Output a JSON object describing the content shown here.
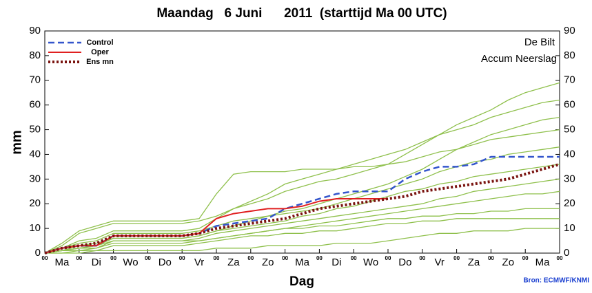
{
  "chart_data": {
    "type": "line",
    "title": "Maandag   6 Juni      2011  (starttijd Ma 00 UTC)",
    "annotations": [
      "De Bilt",
      "Accum Neerslag"
    ],
    "ylabel": "mm",
    "xlabel": "Dag",
    "source": "Bron: ECMWF/KNMI",
    "categories": [
      "Ma",
      "Di",
      "Wo",
      "Do",
      "Vr",
      "Za",
      "Zo",
      "Ma",
      "Di",
      "Wo",
      "Do",
      "Vr",
      "Za",
      "Zo",
      "Ma"
    ],
    "x": [
      0,
      0.5,
      1,
      1.5,
      2,
      2.5,
      3,
      3.5,
      4,
      4.5,
      5,
      5.5,
      6,
      6.5,
      7,
      7.5,
      8,
      8.5,
      9,
      9.5,
      10,
      10.5,
      11,
      11.5,
      12,
      12.5,
      13,
      13.5,
      14,
      14.5,
      15
    ],
    "xlim": [
      0,
      15
    ],
    "xticks": [
      {
        "value": 0,
        "label": "00"
      },
      {
        "value": 1,
        "label": "00"
      },
      {
        "value": 2,
        "label": "00"
      },
      {
        "value": 3,
        "label": "00"
      },
      {
        "value": 4,
        "label": "00"
      },
      {
        "value": 5,
        "label": "00"
      },
      {
        "value": 6,
        "label": "00"
      },
      {
        "value": 7,
        "label": "00"
      },
      {
        "value": 8,
        "label": "00"
      },
      {
        "value": 9,
        "label": "00"
      },
      {
        "value": 10,
        "label": "00"
      },
      {
        "value": 11,
        "label": "00"
      },
      {
        "value": 12,
        "label": "00"
      },
      {
        "value": 13,
        "label": "00"
      },
      {
        "value": 14,
        "label": "00"
      },
      {
        "value": 15,
        "label": "00"
      }
    ],
    "ylim": [
      0,
      90
    ],
    "yticks": [
      0,
      10,
      20,
      30,
      40,
      50,
      60,
      70,
      80,
      90
    ],
    "y2lim": [
      0,
      90
    ],
    "y2ticks": [
      0,
      10,
      20,
      30,
      40,
      50,
      60,
      70,
      80,
      90
    ],
    "legend": "top-left",
    "series": [
      {
        "color": "#8fc04c",
        "style": "solid",
        "values": [
          0,
          3,
          8,
          10,
          12,
          12,
          12,
          12,
          12,
          13,
          15,
          18,
          20,
          22,
          25,
          27,
          29,
          30,
          32,
          34,
          36,
          40,
          44,
          48,
          52,
          55,
          58,
          62,
          65,
          67,
          69
        ]
      },
      {
        "color": "#8fc04c",
        "style": "solid",
        "values": [
          0,
          2,
          5,
          6,
          9,
          9,
          9,
          9,
          9,
          10,
          14,
          18,
          21,
          24,
          28,
          30,
          32,
          34,
          36,
          38,
          40,
          42,
          45,
          48,
          50,
          52,
          55,
          57,
          59,
          61,
          62
        ]
      },
      {
        "color": "#8fc04c",
        "style": "solid",
        "values": [
          0,
          1,
          2,
          3,
          6,
          6,
          6,
          6,
          6,
          7,
          9,
          11,
          13,
          15,
          17,
          18,
          20,
          22,
          24,
          26,
          28,
          31,
          34,
          38,
          42,
          45,
          48,
          50,
          52,
          54,
          55
        ]
      },
      {
        "color": "#8fc04c",
        "style": "solid",
        "values": [
          0,
          4,
          9,
          11,
          13,
          13,
          13,
          13,
          13,
          14,
          24,
          32,
          33,
          33,
          33,
          34,
          34,
          34,
          35,
          35,
          36,
          37,
          39,
          41,
          42,
          44,
          46,
          47,
          48,
          49,
          50
        ]
      },
      {
        "color": "#8fc04c",
        "style": "solid",
        "values": [
          0,
          2,
          4,
          5,
          8,
          8,
          8,
          8,
          8,
          9,
          11,
          13,
          14,
          15,
          16,
          17,
          18,
          20,
          22,
          24,
          26,
          28,
          30,
          33,
          35,
          37,
          38,
          40,
          41,
          42,
          43
        ]
      },
      {
        "color": "#8fc04c",
        "style": "solid",
        "values": [
          0,
          1,
          3,
          4,
          6,
          6,
          6,
          6,
          6,
          7,
          9,
          10,
          11,
          12,
          13,
          15,
          16,
          18,
          19,
          21,
          23,
          25,
          26,
          28,
          29,
          31,
          32,
          33,
          34,
          35,
          36
        ]
      },
      {
        "color": "#8fc04c",
        "style": "solid",
        "values": [
          0,
          1,
          2,
          3,
          5,
          5,
          5,
          5,
          5,
          6,
          8,
          9,
          10,
          11,
          12,
          13,
          14,
          15,
          16,
          17,
          18,
          19,
          20,
          22,
          23,
          25,
          26,
          27,
          28,
          29,
          30
        ]
      },
      {
        "color": "#8fc04c",
        "style": "solid",
        "values": [
          0,
          1,
          2,
          2,
          5,
          5,
          5,
          5,
          5,
          5,
          6,
          7,
          8,
          9,
          10,
          11,
          12,
          13,
          14,
          15,
          16,
          17,
          18,
          19,
          20,
          21,
          22,
          23,
          24,
          24,
          25
        ]
      },
      {
        "color": "#8fc04c",
        "style": "solid",
        "values": [
          0,
          1,
          1,
          2,
          4,
          4,
          4,
          4,
          4,
          5,
          6,
          7,
          8,
          9,
          10,
          10,
          11,
          11,
          12,
          13,
          14,
          14,
          15,
          15,
          16,
          16,
          17,
          17,
          18,
          18,
          18
        ]
      },
      {
        "color": "#8fc04c",
        "style": "solid",
        "values": [
          0,
          0,
          1,
          1,
          3,
          3,
          3,
          3,
          3,
          4,
          5,
          6,
          7,
          7,
          8,
          8,
          9,
          9,
          10,
          11,
          12,
          12,
          13,
          13,
          14,
          14,
          14,
          14,
          14,
          14,
          14
        ]
      },
      {
        "color": "#8fc04c",
        "style": "solid",
        "values": [
          0,
          0,
          0,
          1,
          1,
          1,
          1,
          1,
          1,
          1,
          2,
          2,
          2,
          3,
          3,
          3,
          3,
          4,
          4,
          4,
          5,
          6,
          7,
          8,
          8,
          9,
          9,
          9,
          10,
          10,
          10
        ]
      },
      {
        "name": "Control",
        "color": "#3355cc",
        "style": "dashed",
        "values": [
          0,
          2,
          3,
          3,
          7,
          7,
          7,
          7,
          7,
          8,
          11,
          12,
          13,
          14,
          18,
          20,
          22,
          24,
          25,
          25,
          25,
          30,
          33,
          35,
          35,
          36,
          39,
          39,
          39,
          39,
          39
        ]
      },
      {
        "name": "Oper",
        "color": "#e02020",
        "style": "solid",
        "values": [
          0,
          2,
          3,
          3,
          7,
          7,
          7,
          7,
          7,
          8,
          14,
          16,
          17,
          18,
          18,
          19,
          21,
          22,
          22,
          22,
          22,
          null,
          null,
          null,
          null,
          null,
          null,
          null,
          null,
          null,
          null
        ]
      },
      {
        "name": "Ens mn",
        "color": "#7a1410",
        "style": "dotted",
        "values": [
          0,
          2,
          3,
          4,
          7,
          7,
          7,
          7,
          7,
          8,
          10,
          11,
          12,
          13,
          14,
          16,
          18,
          19,
          20,
          21,
          22,
          23,
          25,
          26,
          27,
          28,
          29,
          30,
          32,
          34,
          36
        ]
      }
    ]
  }
}
